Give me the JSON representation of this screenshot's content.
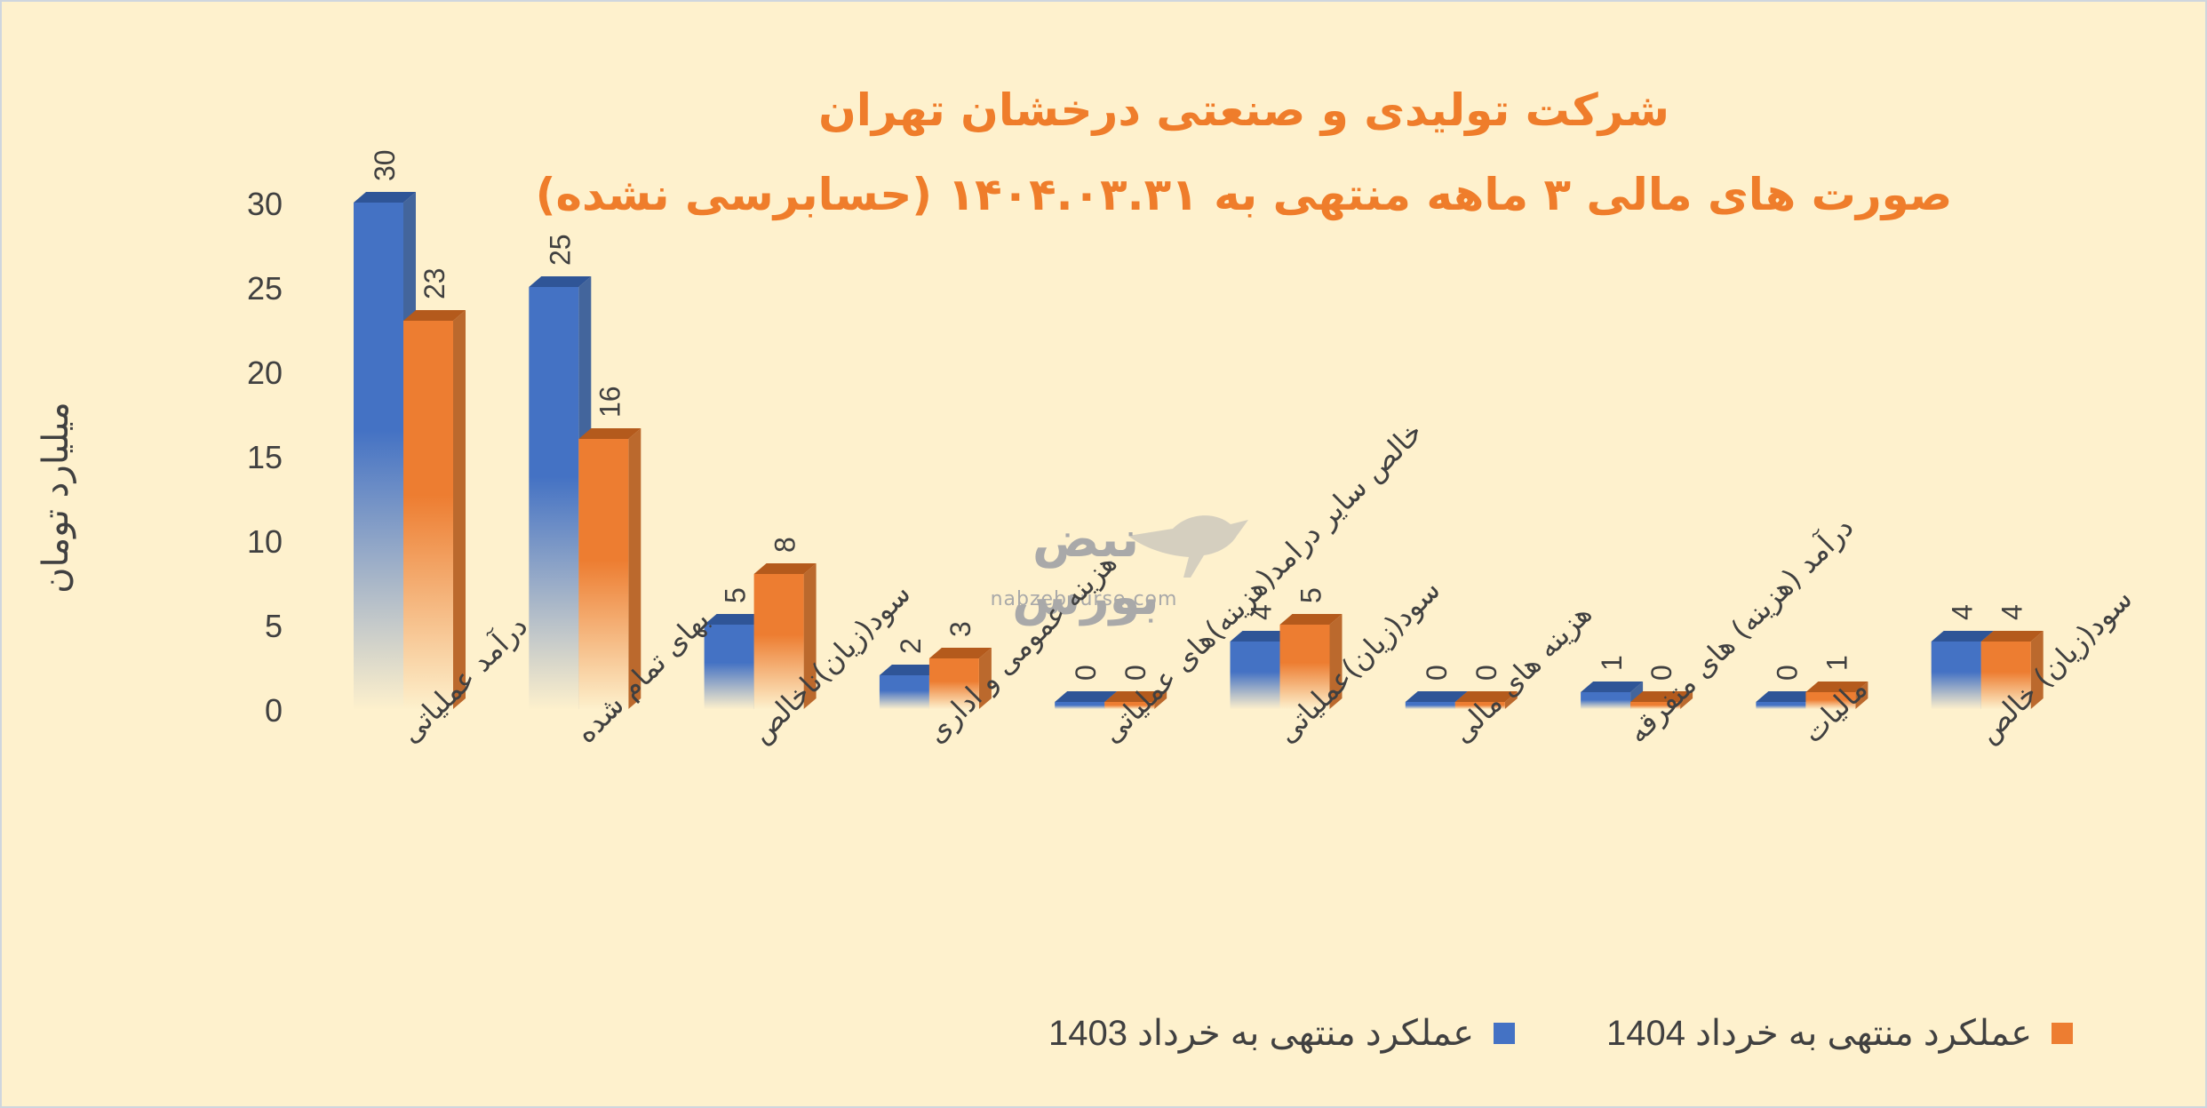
{
  "chart_data": {
    "type": "bar",
    "title": "شرکت تولیدی و صنعتی درخشان تهران",
    "subtitle": "صورت های مالی ۳ ماهه منتهی به ۱۴۰۴.۰۳.۳۱ (حسابرسی نشده)",
    "xlabel": "",
    "ylabel": "میلیارد تومان",
    "ylim": [
      0,
      30
    ],
    "yticks": [
      "0",
      "5",
      "10",
      "15",
      "20",
      "25",
      "30"
    ],
    "categories": [
      "درآمد عملیاتی",
      "بهای تمام شده",
      "سود(زیان)ناخالص",
      "هزینه عمومی و اداری",
      "خالص سایر درامد(هزینه)های عملیاتی",
      "سود(زیان)عملیاتی",
      "هزینه های مالی",
      "درآمد (هزینه) های متفرقه",
      "مالیات",
      "سود(زیان) خالص"
    ],
    "series": [
      {
        "name": "عملکرد منتهی به خرداد 1403",
        "values": [
          30,
          25,
          5,
          2,
          0,
          4,
          0,
          1,
          0,
          4
        ],
        "color": "#4472c4"
      },
      {
        "name": "عملکرد منتهی به خرداد 1404",
        "values": [
          23,
          16,
          8,
          3,
          0,
          5,
          0,
          0,
          1,
          4
        ],
        "color": "#ed7d31"
      }
    ],
    "grid": false,
    "legend": "bottom"
  },
  "watermark": {
    "text": "نبض بورس",
    "url": "nabzebourse.com"
  }
}
